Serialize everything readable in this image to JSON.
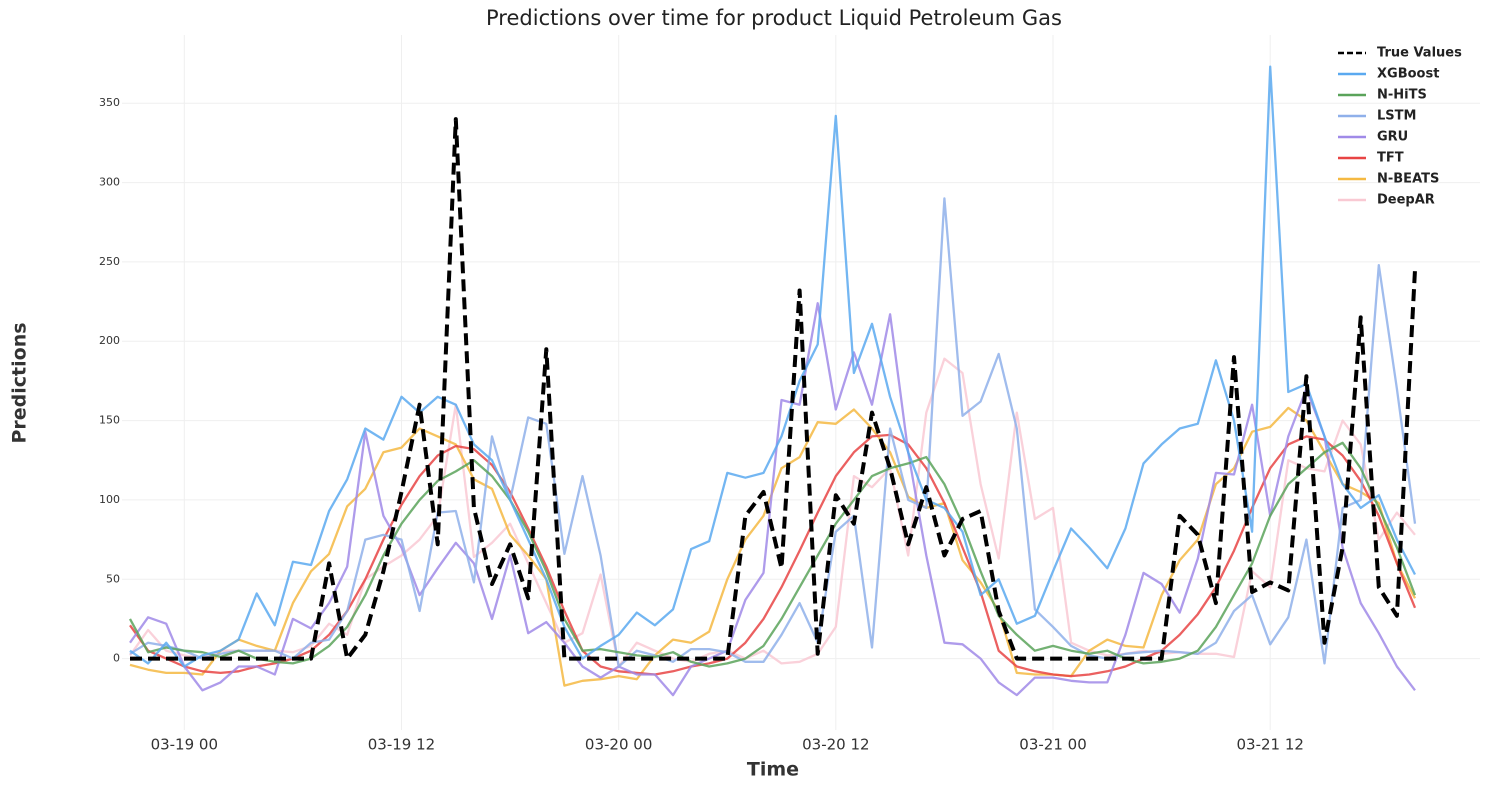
{
  "chart_data": {
    "type": "line",
    "title": "Predictions over time for product Liquid Petroleum Gas",
    "xlabel": "Time",
    "ylabel": "Predictions",
    "grid": true,
    "legend": "upper right",
    "ylim": [
      -45,
      393
    ],
    "yticks": [
      0,
      50,
      100,
      150,
      200,
      250,
      300,
      350
    ],
    "xlim": [
      "03-18 21",
      "03-21 20"
    ],
    "xticks": [
      "03-19 00",
      "03-19 12",
      "03-20 00",
      "03-20 12",
      "03-21 00",
      "03-21 12"
    ],
    "x": [
      "03-18 21",
      "03-18 22",
      "03-18 23",
      "03-19 00",
      "03-19 01",
      "03-19 02",
      "03-19 03",
      "03-19 04",
      "03-19 05",
      "03-19 06",
      "03-19 07",
      "03-19 08",
      "03-19 09",
      "03-19 10",
      "03-19 11",
      "03-19 12",
      "03-19 13",
      "03-19 14",
      "03-19 15",
      "03-19 16",
      "03-19 17",
      "03-19 18",
      "03-19 19",
      "03-19 20",
      "03-19 21",
      "03-19 22",
      "03-19 23",
      "03-20 00",
      "03-20 01",
      "03-20 02",
      "03-20 03",
      "03-20 04",
      "03-20 05",
      "03-20 06",
      "03-20 07",
      "03-20 08",
      "03-20 09",
      "03-20 10",
      "03-20 11",
      "03-20 12",
      "03-20 13",
      "03-20 14",
      "03-20 15",
      "03-20 16",
      "03-20 17",
      "03-20 18",
      "03-20 19",
      "03-20 20",
      "03-20 21",
      "03-20 22",
      "03-20 23",
      "03-21 00",
      "03-21 01",
      "03-21 02",
      "03-21 03",
      "03-21 04",
      "03-21 05",
      "03-21 06",
      "03-21 07",
      "03-21 08",
      "03-21 09",
      "03-21 10",
      "03-21 11",
      "03-21 12",
      "03-21 13",
      "03-21 14",
      "03-21 15",
      "03-21 16",
      "03-21 17",
      "03-21 18",
      "03-21 19",
      "03-21 20"
    ],
    "series": [
      {
        "name": "True Values",
        "color": "#000000",
        "linestyle": "dashed",
        "values": [
          0,
          0,
          0,
          0,
          0,
          0,
          0,
          0,
          0,
          0,
          0,
          60,
          0,
          15,
          55,
          105,
          160,
          72,
          340,
          95,
          47,
          72,
          38,
          195,
          0,
          0,
          0,
          0,
          0,
          0,
          0,
          0,
          0,
          0,
          90,
          105,
          57,
          232,
          3,
          103,
          85,
          155,
          120,
          72,
          108,
          65,
          88,
          93,
          30,
          0,
          0,
          0,
          0,
          0,
          0,
          0,
          0,
          0,
          90,
          78,
          35,
          190,
          42,
          48,
          43,
          178,
          10,
          70,
          215,
          45,
          27,
          245
        ]
      },
      {
        "name": "XGBoost",
        "color": "#5aa9f0",
        "values": [
          5,
          -3,
          10,
          -5,
          2,
          5,
          12,
          41,
          21,
          61,
          59,
          93,
          113,
          145,
          138,
          165,
          155,
          165,
          160,
          135,
          125,
          100,
          75,
          50,
          20,
          0,
          8,
          15,
          29,
          21,
          31,
          69,
          74,
          117,
          114,
          117,
          140,
          175,
          198,
          342,
          180,
          211,
          165,
          130,
          100,
          95,
          80,
          40,
          50,
          22,
          27,
          55,
          82,
          70,
          57,
          82,
          123,
          135,
          145,
          148,
          188,
          150,
          80,
          373,
          168,
          173,
          140,
          110,
          95,
          103,
          75,
          53
        ]
      },
      {
        "name": "N-HiTS",
        "color": "#5aa35a",
        "values": [
          25,
          4,
          7,
          5,
          4,
          1,
          5,
          0,
          -2,
          -3,
          0,
          8,
          20,
          40,
          65,
          85,
          100,
          112,
          118,
          125,
          115,
          100,
          80,
          55,
          25,
          5,
          6,
          4,
          2,
          1,
          4,
          -2,
          -5,
          -3,
          0,
          8,
          25,
          45,
          65,
          85,
          100,
          115,
          120,
          123,
          127,
          110,
          85,
          55,
          27,
          15,
          5,
          8,
          5,
          3,
          5,
          0,
          -3,
          -2,
          0,
          5,
          20,
          40,
          60,
          90,
          110,
          120,
          130,
          136,
          120,
          95,
          70,
          40
        ]
      },
      {
        "name": "LSTM",
        "color": "#8fb0ea",
        "values": [
          3,
          10,
          8,
          5,
          0,
          3,
          5,
          5,
          5,
          0,
          10,
          12,
          30,
          75,
          78,
          75,
          30,
          92,
          93,
          48,
          140,
          100,
          152,
          148,
          66,
          115,
          65,
          -5,
          5,
          2,
          -2,
          6,
          6,
          4,
          -2,
          -2,
          15,
          35,
          10,
          80,
          90,
          7,
          145,
          100,
          95,
          290,
          153,
          162,
          192,
          145,
          31,
          20,
          8,
          2,
          0,
          3,
          4,
          5,
          4,
          3,
          10,
          30,
          40,
          9,
          26,
          75,
          -3,
          95,
          100,
          248,
          170,
          85
        ]
      },
      {
        "name": "GRU",
        "color": "#a08ae8",
        "values": [
          10,
          26,
          22,
          -5,
          -20,
          -15,
          -5,
          -5,
          -10,
          25,
          19,
          35,
          58,
          143,
          90,
          70,
          40,
          57,
          73,
          60,
          25,
          65,
          16,
          23,
          10,
          -5,
          -12,
          -5,
          -10,
          -10,
          -23,
          -5,
          0,
          5,
          37,
          54,
          163,
          160,
          224,
          157,
          193,
          160,
          217,
          130,
          65,
          10,
          9,
          0,
          -15,
          -23,
          -12,
          -12,
          -14,
          -15,
          -15,
          15,
          54,
          47,
          29,
          63,
          117,
          116,
          160,
          90,
          140,
          170,
          140,
          70,
          35,
          16,
          -5,
          -20
        ]
      },
      {
        "name": "TFT",
        "color": "#e84444",
        "values": [
          21,
          5,
          0,
          -5,
          -8,
          -9,
          -8,
          -5,
          -3,
          0,
          5,
          15,
          30,
          50,
          75,
          97,
          115,
          128,
          134,
          132,
          122,
          105,
          82,
          58,
          30,
          5,
          -5,
          -8,
          -9,
          -10,
          -8,
          -5,
          -3,
          0,
          10,
          25,
          45,
          68,
          92,
          115,
          130,
          140,
          141,
          135,
          120,
          98,
          70,
          42,
          5,
          -5,
          -8,
          -10,
          -11,
          -10,
          -8,
          -5,
          0,
          5,
          15,
          28,
          45,
          68,
          95,
          120,
          135,
          140,
          138,
          128,
          112,
          90,
          60,
          32
        ]
      },
      {
        "name": "N-BEATS",
        "color": "#f5b942",
        "values": [
          -4,
          -7,
          -9,
          -9,
          -10,
          5,
          12,
          8,
          5,
          35,
          55,
          66,
          96,
          107,
          130,
          133,
          145,
          140,
          135,
          113,
          107,
          78,
          65,
          50,
          -17,
          -14,
          -13,
          -11,
          -13,
          2,
          12,
          10,
          17,
          50,
          75,
          90,
          120,
          127,
          149,
          148,
          157,
          145,
          130,
          102,
          95,
          98,
          62,
          48,
          30,
          -9,
          -10,
          -10,
          -11,
          5,
          12,
          8,
          7,
          40,
          62,
          75,
          110,
          120,
          143,
          146,
          158,
          150,
          130,
          110,
          105,
          98,
          60,
          38
        ]
      },
      {
        "name": "DeepAR",
        "color": "#f9c9d3",
        "values": [
          2,
          18,
          5,
          2,
          0,
          5,
          5,
          5,
          5,
          4,
          8,
          22,
          15,
          50,
          58,
          65,
          75,
          90,
          160,
          64,
          73,
          85,
          60,
          35,
          10,
          16,
          53,
          -5,
          10,
          5,
          0,
          -2,
          3,
          5,
          0,
          5,
          -3,
          -2,
          3,
          20,
          115,
          108,
          120,
          65,
          155,
          189,
          180,
          110,
          63,
          155,
          88,
          95,
          10,
          5,
          2,
          3,
          5,
          3,
          4,
          3,
          3,
          1,
          55,
          45,
          125,
          120,
          118,
          150,
          135,
          75,
          92,
          78
        ]
      }
    ]
  }
}
